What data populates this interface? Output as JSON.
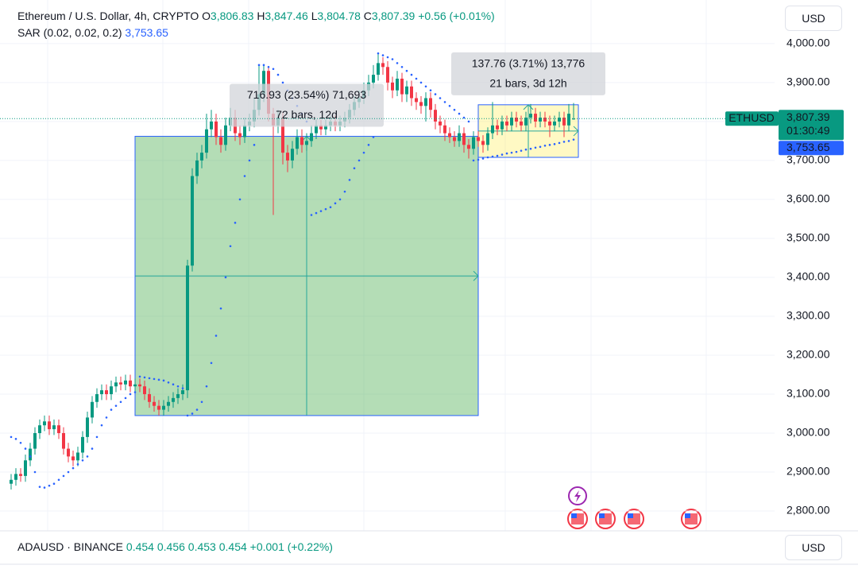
{
  "chart_data": {
    "type": "candlestick",
    "header": {
      "symbol": "Ethereum / U.S. Dollar, 4h, CRYPTO",
      "ohlc": [
        {
          "key": "O",
          "value": "3,806.83"
        },
        {
          "key": "H",
          "value": "3,847.46"
        },
        {
          "key": "L",
          "value": "3,804.78"
        },
        {
          "key": "C",
          "value": "3,807.39"
        }
      ],
      "change": "+0.56 (+0.01%)"
    },
    "sar": {
      "name": "SAR (0.02, 0.02, 0.2)",
      "value": "3,753.65",
      "color": "#2962ff",
      "values": [
        2990,
        2985,
        2975,
        2960,
        2940,
        2900,
        2862,
        2860,
        2865,
        2870,
        2880,
        2890,
        2900,
        2910,
        2920,
        2930,
        2940,
        2960,
        2990,
        3020,
        3040,
        3060,
        3070,
        3080,
        3090,
        3100,
        3105,
        3145,
        3143,
        3141,
        3139,
        3137,
        3135,
        3130,
        3125,
        3120,
        3115,
        3045,
        3050,
        3060,
        3080,
        3120,
        3180,
        3250,
        3320,
        3400,
        3480,
        3540,
        3600,
        3660,
        3700,
        3740,
        3945,
        3945,
        3940,
        3935,
        3920,
        3900,
        3880,
        3860,
        3840,
        3820,
        3800,
        3560,
        3565,
        3570,
        3575,
        3580,
        3590,
        3600,
        3620,
        3650,
        3680,
        3700,
        3720,
        3740,
        3760,
        3975,
        3970,
        3965,
        3960,
        3950,
        3940,
        3930,
        3920,
        3910,
        3900,
        3890,
        3880,
        3870,
        3860,
        3850,
        3840,
        3830,
        3820,
        3810,
        3800,
        3700,
        3702,
        3705,
        3708,
        3710,
        3712,
        3715,
        3718,
        3720,
        3722,
        3725,
        3728,
        3730,
        3733,
        3735,
        3738,
        3740,
        3742,
        3745,
        3748,
        3750,
        3753.65
      ]
    },
    "open": [
      2870,
      2880,
      2895,
      2890,
      2930,
      2960,
      3000,
      3020,
      3030,
      3010,
      3020,
      3000,
      2960,
      2940,
      2930,
      2950,
      2990,
      3040,
      3080,
      3100,
      3110,
      3100,
      3120,
      3130,
      3125,
      3135,
      3120,
      3125,
      3120,
      3100,
      3080,
      3070,
      3060,
      3070,
      3080,
      3090,
      3100,
      3110,
      3430,
      3660,
      3700,
      3720,
      3780,
      3800,
      3760,
      3740,
      3790,
      3810,
      3770,
      3760,
      3790,
      3800,
      3830,
      3870,
      3930,
      3820,
      3790,
      3810,
      3720,
      3700,
      3730,
      3760,
      3740,
      3750,
      3770,
      3790,
      3780,
      3790,
      3800,
      3790,
      3800,
      3810,
      3830,
      3850,
      3860,
      3880,
      3900,
      3920,
      3950,
      3940,
      3900,
      3880,
      3910,
      3870,
      3890,
      3860,
      3850,
      3840,
      3860,
      3830,
      3800,
      3790,
      3770,
      3760,
      3750,
      3770,
      3740,
      3730,
      3760,
      3750,
      3740,
      3770,
      3790,
      3780,
      3800,
      3790,
      3810,
      3800,
      3790,
      3810,
      3820,
      3800,
      3810,
      3800,
      3790,
      3800,
      3810,
      3790,
      3806.83
    ],
    "high": [
      2895,
      2910,
      2910,
      2945,
      2975,
      3015,
      3035,
      3045,
      3045,
      3035,
      3035,
      3015,
      2975,
      2955,
      2965,
      3005,
      3055,
      3095,
      3115,
      3125,
      3125,
      3135,
      3145,
      3145,
      3150,
      3150,
      3140,
      3140,
      3135,
      3115,
      3095,
      3085,
      3085,
      3095,
      3105,
      3115,
      3125,
      3445,
      3680,
      3720,
      3740,
      3820,
      3830,
      3820,
      3780,
      3810,
      3835,
      3830,
      3790,
      3810,
      3820,
      3860,
      3945,
      3945,
      3940,
      3835,
      3830,
      3825,
      3740,
      3750,
      3780,
      3780,
      3770,
      3790,
      3805,
      3805,
      3805,
      3815,
      3815,
      3815,
      3825,
      3845,
      3865,
      3880,
      3900,
      3920,
      3945,
      3975,
      3965,
      3955,
      3915,
      3930,
      3925,
      3905,
      3905,
      3875,
      3865,
      3875,
      3875,
      3845,
      3815,
      3805,
      3785,
      3775,
      3790,
      3785,
      3755,
      3775,
      3775,
      3765,
      3785,
      3850,
      3805,
      3815,
      3815,
      3825,
      3825,
      3815,
      3825,
      3845,
      3835,
      3825,
      3825,
      3815,
      3815,
      3825,
      3825,
      3845,
      3847.46
    ],
    "low": [
      2855,
      2865,
      2875,
      2875,
      2915,
      2945,
      2985,
      3005,
      2995,
      2995,
      2985,
      2945,
      2925,
      2915,
      2915,
      2935,
      2975,
      3025,
      3065,
      3085,
      3085,
      3085,
      3105,
      3110,
      3110,
      3105,
      3105,
      3105,
      3085,
      3065,
      3055,
      3045,
      3045,
      3055,
      3065,
      3075,
      3085,
      3090,
      3415,
      3640,
      3680,
      3705,
      3760,
      3740,
      3720,
      3725,
      3775,
      3750,
      3740,
      3745,
      3775,
      3785,
      3815,
      3850,
      3800,
      3560,
      3770,
      3690,
      3670,
      3680,
      3715,
      3720,
      3725,
      3735,
      3755,
      3765,
      3765,
      3775,
      3775,
      3775,
      3785,
      3795,
      3815,
      3835,
      3845,
      3865,
      3885,
      3905,
      3920,
      3880,
      3860,
      3865,
      3850,
      3850,
      3840,
      3830,
      3820,
      3800,
      3810,
      3780,
      3770,
      3750,
      3745,
      3735,
      3735,
      3720,
      3705,
      3715,
      3735,
      3720,
      3725,
      3755,
      3765,
      3765,
      3775,
      3775,
      3785,
      3775,
      3775,
      3795,
      3785,
      3785,
      3785,
      3760,
      3775,
      3785,
      3760,
      3775,
      3804.78
    ],
    "close": [
      2880,
      2895,
      2890,
      2930,
      2960,
      3000,
      3020,
      3030,
      3010,
      3020,
      3000,
      2960,
      2940,
      2930,
      2950,
      2990,
      3040,
      3080,
      3100,
      3110,
      3100,
      3120,
      3130,
      3125,
      3135,
      3120,
      3125,
      3120,
      3100,
      3080,
      3070,
      3060,
      3070,
      3080,
      3090,
      3100,
      3110,
      3430,
      3660,
      3700,
      3720,
      3780,
      3800,
      3760,
      3740,
      3790,
      3810,
      3770,
      3760,
      3790,
      3800,
      3830,
      3870,
      3930,
      3820,
      3790,
      3810,
      3720,
      3700,
      3730,
      3760,
      3740,
      3750,
      3770,
      3790,
      3780,
      3790,
      3800,
      3790,
      3800,
      3810,
      3830,
      3850,
      3860,
      3880,
      3900,
      3920,
      3950,
      3940,
      3900,
      3880,
      3910,
      3870,
      3890,
      3860,
      3850,
      3840,
      3860,
      3830,
      3800,
      3790,
      3770,
      3760,
      3750,
      3770,
      3740,
      3730,
      3760,
      3750,
      3740,
      3770,
      3790,
      3780,
      3800,
      3790,
      3810,
      3800,
      3790,
      3810,
      3820,
      3800,
      3810,
      3800,
      3790,
      3800,
      3810,
      3790,
      3820,
      3807.39
    ],
    "up_color": "#089981",
    "down_color": "#f23645",
    "ylim": [
      2749,
      4112
    ],
    "yticks": [
      {
        "value": 4000,
        "label": "4,000.00"
      },
      {
        "value": 3900,
        "label": "3,900.00"
      },
      {
        "value": 3800,
        "label": "3,800.00"
      },
      {
        "value": 3700,
        "label": "3,700.00"
      },
      {
        "value": 3600,
        "label": "3,600.00"
      },
      {
        "value": 3500,
        "label": "3,500.00"
      },
      {
        "value": 3400,
        "label": "3,400.00"
      },
      {
        "value": 3300,
        "label": "3,300.00"
      },
      {
        "value": 3200,
        "label": "3,200.00"
      },
      {
        "value": 3100,
        "label": "3,100.00"
      },
      {
        "value": 3000,
        "label": "3,000.00"
      },
      {
        "value": 2900,
        "label": "2,900.00"
      },
      {
        "value": 2800,
        "label": "2,800.00"
      }
    ],
    "grid": true,
    "price_tag": {
      "symbol": "ETHUSD",
      "price": "3,807.39",
      "countdown": "01:30:49",
      "sar": "3,753.65"
    },
    "measures": [
      {
        "start": 26,
        "end": 98,
        "low": 3045,
        "high": 3762,
        "fill": "rgba(76,175,80,0.42)",
        "lines": [
          "716.93 (23.54%) 71,693",
          "72 bars, 12d"
        ]
      },
      {
        "start": 98,
        "end": 119,
        "low": 3708,
        "high": 3843,
        "fill": "rgba(255,235,59,0.3)",
        "lines": [
          "137.76 (3.71%) 13,776",
          "21 bars, 3d 12h"
        ]
      }
    ],
    "currency": "USD",
    "sub_pane": {
      "symbol": "ADAUSD · BINANCE",
      "values": [
        "0.454",
        "0.456",
        "0.453",
        "0.454",
        "+0.001 (+0.22%)"
      ],
      "currency": "USD"
    }
  }
}
